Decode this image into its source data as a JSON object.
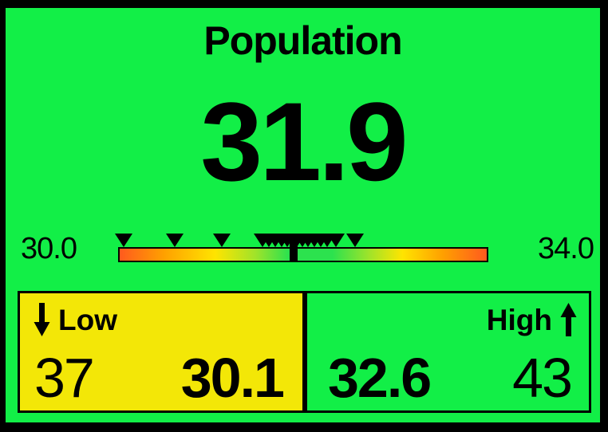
{
  "title": "Population",
  "display": {
    "current_value": "31.9"
  },
  "gauge": {
    "min": 30.0,
    "max": 34.0,
    "value": 31.9,
    "min_label": "30.0",
    "max_label": "34.0",
    "markers": [
      30.06,
      30.61,
      31.12,
      31.56,
      31.63,
      31.7,
      31.77,
      31.83,
      31.88,
      31.93,
      31.99,
      32.05,
      32.12,
      32.19,
      32.26,
      32.35,
      32.56
    ],
    "gradient": [
      "#ff5a1e 0%",
      "#ffa000 12%",
      "#ffe400 26%",
      "#a0e32a 37%",
      "#2ce24e 46%",
      "#2ce24e 58%",
      "#a0e32a 68%",
      "#ffe400 77%",
      "#ffa000 88%",
      "#ff5a1e 100%"
    ]
  },
  "low_panel": {
    "label": "Low",
    "count": "37",
    "value": "30.1",
    "arrow_icon": "down-arrow"
  },
  "high_panel": {
    "label": "High",
    "count": "43",
    "value": "32.6",
    "arrow_icon": "up-arrow"
  },
  "colors": {
    "background": "#12ef47",
    "low_panel_background": "#f3e707",
    "text": "#000000",
    "scale_low_end": "#ff5a1e",
    "scale_mid": "#2ce24e"
  },
  "chart_data": {
    "type": "gauge",
    "title": "Population",
    "current_value": 31.9,
    "axis_range": [
      30.0,
      34.0
    ],
    "axis_tick_labels": [
      "30.0",
      "34.0"
    ],
    "recent_value_markers": [
      30.06,
      30.61,
      31.12,
      31.56,
      31.63,
      31.7,
      31.77,
      31.83,
      31.88,
      31.93,
      31.99,
      32.05,
      32.12,
      32.19,
      32.26,
      32.35,
      32.56
    ],
    "low": {
      "value": 30.1,
      "secondary_number": 37
    },
    "high": {
      "value": 32.6,
      "secondary_number": 43
    },
    "color_scale": "red-orange at both ends, yellow, green in the middle"
  }
}
